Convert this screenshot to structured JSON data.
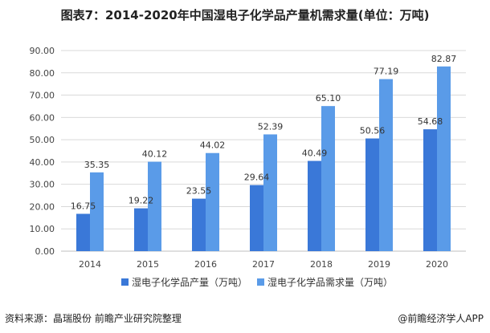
{
  "header": {
    "title": "图表7：2014-2020年中国湿电子化学品产量机需求量(单位：万吨)"
  },
  "chart_data": {
    "type": "bar",
    "categories": [
      "2014",
      "2015",
      "2016",
      "2017",
      "2018",
      "2019",
      "2020"
    ],
    "series": [
      {
        "name": "湿电子化学品产量（万吨）",
        "values": [
          16.75,
          19.22,
          23.55,
          29.64,
          40.49,
          50.56,
          54.68
        ],
        "color": "#3a78d8"
      },
      {
        "name": "湿电子化学品需求量（万吨）",
        "values": [
          35.35,
          40.12,
          44.02,
          52.39,
          65.1,
          77.19,
          82.87
        ],
        "color": "#5a9be8"
      }
    ],
    "value_labels": [
      [
        "16.75",
        "19.22",
        "23.55",
        "29.64",
        "40.49",
        "50.56",
        "54.68"
      ],
      [
        "35.35",
        "40.12",
        "44.02",
        "52.39",
        "65.10",
        "77.19",
        "82.87"
      ]
    ],
    "yticks": [
      "0.00",
      "10.00",
      "20.00",
      "30.00",
      "40.00",
      "50.00",
      "60.00",
      "70.00",
      "80.00",
      "90.00"
    ],
    "ylim": [
      0,
      90
    ],
    "grid": true,
    "legend": "bottom",
    "xlabel": "",
    "ylabel": ""
  },
  "footer": {
    "source": "资料来源：晶瑞股份 前瞻产业研究院整理",
    "credit": "@前瞻经济学人APP"
  }
}
